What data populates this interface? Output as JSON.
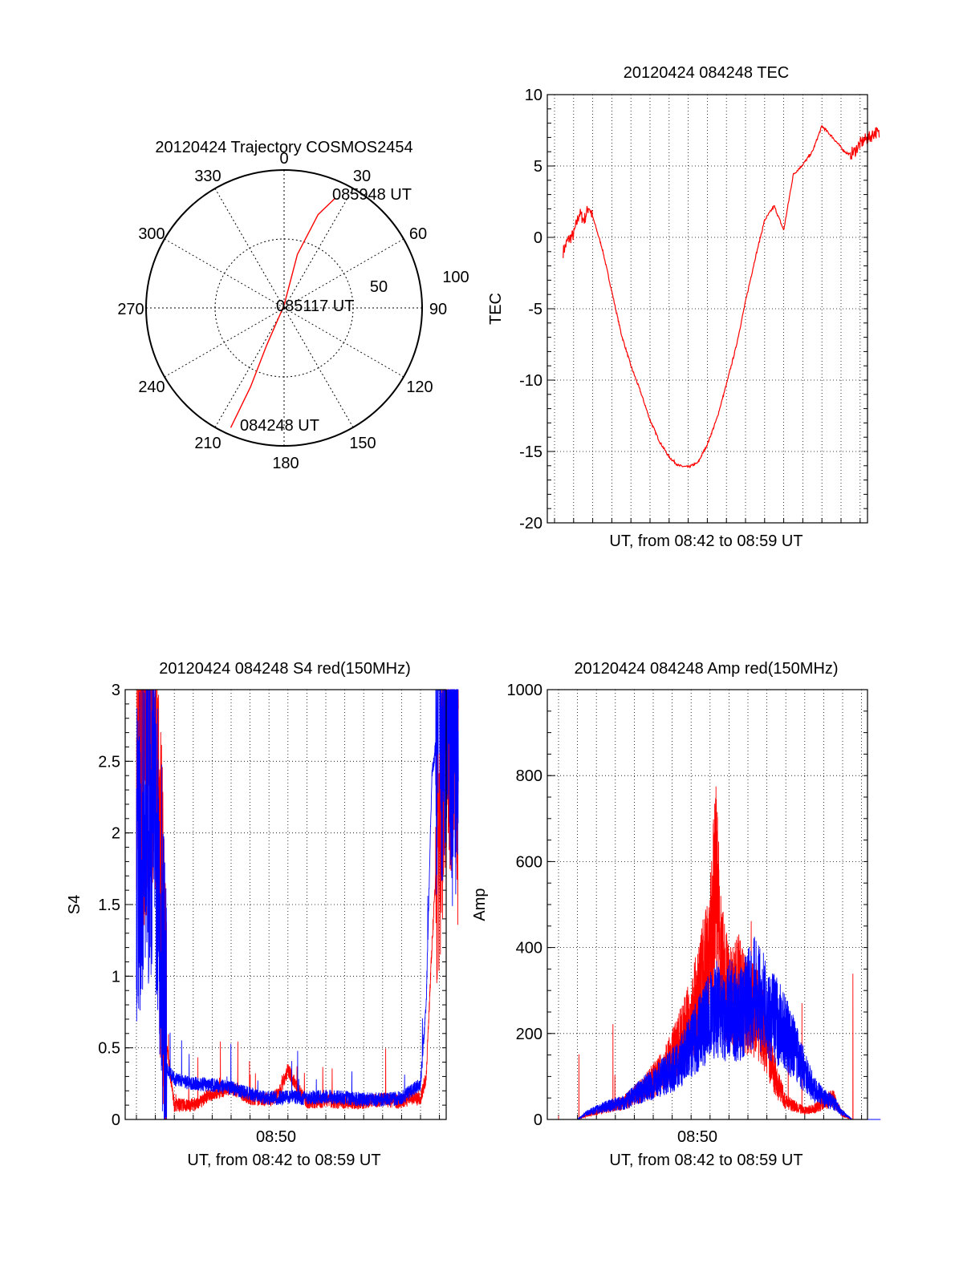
{
  "colors": {
    "red": "#ff0000",
    "blue": "#0000ff",
    "axis": "#000000",
    "grid": "#000000"
  },
  "chart_data": [
    {
      "type": "polar",
      "title": "20120424 Trajectory COSMOS2454",
      "azimuth_labels": [
        "0",
        "30",
        "60",
        "90",
        "120",
        "150",
        "180",
        "210",
        "240",
        "270",
        "300",
        "330"
      ],
      "radial_labels": [
        "50",
        "100"
      ],
      "annotations": [
        "085948 UT",
        "085117 UT",
        "084248 UT"
      ],
      "series": [
        {
          "color": "red",
          "points": [
            [
              25,
              88
            ],
            [
              20,
              72
            ],
            [
              14,
              40
            ],
            [
              0,
              2
            ],
            [
              205,
              30
            ],
            [
              203,
              62
            ],
            [
              204,
              95
            ]
          ]
        }
      ]
    },
    {
      "type": "line",
      "title": "20120424 084248 TEC",
      "ylabel": "TEC",
      "xlabel": "UT, from 08:42 to 08:59 UT",
      "ylim": [
        -20,
        10
      ],
      "yticks": [
        "10",
        "5",
        "0",
        "-5",
        "-10",
        "-15",
        "-20"
      ],
      "xticklabels": [],
      "x_range_min": [
        0,
        17
      ],
      "series": [
        {
          "color": "red",
          "x": [
            0.45,
            0.7,
            1.0,
            1.3,
            1.55,
            1.8,
            2.1,
            2.5,
            3.0,
            3.5,
            4.0,
            4.5,
            5.0,
            5.5,
            6.0,
            6.5,
            7.0,
            7.5,
            8.0,
            8.5,
            9.0,
            9.5,
            10.0,
            10.5,
            11.0,
            11.5,
            12.0,
            12.5,
            13.0,
            13.5,
            14.0,
            14.5,
            15.0,
            15.2,
            15.45,
            15.7,
            15.9,
            16.2,
            16.5,
            16.8,
            17.0
          ],
          "y": [
            -1,
            -0.2,
            0.2,
            1.7,
            1.2,
            2.2,
            1.0,
            -0.8,
            -3.8,
            -6.8,
            -9.0,
            -10.8,
            -12.8,
            -14.3,
            -15.4,
            -16.0,
            -16.1,
            -15.8,
            -14.5,
            -12.7,
            -10.3,
            -7.7,
            -4.5,
            -1.5,
            1.2,
            2.2,
            0.5,
            4.4,
            5.1,
            6.0,
            7.8,
            7.1,
            6.3,
            6.0,
            5.8,
            6.0,
            6.4,
            6.8,
            7.0,
            7.4,
            7.2
          ]
        }
      ]
    },
    {
      "type": "line",
      "title": "20120424 084248 S4 red(150MHz)",
      "ylabel": "S4",
      "xlabel": "UT, from 08:42 to 08:59 UT",
      "ylim": [
        0,
        3
      ],
      "yticks": [
        "3",
        "2.5",
        "2",
        "1.5",
        "1",
        "0.5",
        "0"
      ],
      "xticklabels": [
        "08:50"
      ],
      "series": [
        {
          "color": "red",
          "x": [
            0,
            0.5,
            0.9,
            1.3,
            1.6,
            2.0,
            3.0,
            4.0,
            5.0,
            6.0,
            6.5,
            7.0,
            7.5,
            8.0,
            8.5,
            9.0,
            10.0,
            11.0,
            12.0,
            13.0,
            14.0,
            14.5,
            15.0,
            15.3,
            15.6,
            16.0,
            16.4,
            16.8,
            17.0
          ],
          "y": [
            2.8,
            2.5,
            2.9,
            1.5,
            0.5,
            0.1,
            0.1,
            0.18,
            0.22,
            0.15,
            0.14,
            0.14,
            0.17,
            0.35,
            0.22,
            0.12,
            0.13,
            0.12,
            0.12,
            0.14,
            0.12,
            0.15,
            0.15,
            0.3,
            1.2,
            2.2,
            2.9,
            2.9,
            2.5
          ]
        },
        {
          "color": "blue",
          "x": [
            0,
            0.5,
            0.9,
            1.3,
            1.6,
            2.0,
            3.0,
            4.0,
            5.0,
            6.0,
            6.5,
            7.0,
            7.5,
            8.0,
            8.5,
            9.0,
            10.0,
            11.0,
            12.0,
            13.0,
            14.0,
            14.5,
            15.0,
            15.3,
            15.6,
            16.0,
            16.4,
            16.8,
            17.0
          ],
          "y": [
            1.8,
            2.0,
            2.2,
            1.5,
            0.35,
            0.28,
            0.25,
            0.24,
            0.22,
            0.18,
            0.16,
            0.15,
            0.15,
            0.16,
            0.15,
            0.15,
            0.16,
            0.15,
            0.14,
            0.14,
            0.15,
            0.2,
            0.25,
            0.8,
            2.4,
            2.8,
            2.9,
            2.6,
            2.9
          ]
        }
      ]
    },
    {
      "type": "line",
      "title": "20120424 084248 Amp red(150MHz)",
      "ylabel": "Amp",
      "xlabel": "UT, from 08:42 to 08:59 UT",
      "ylim": [
        0,
        1000
      ],
      "yticks": [
        "1000",
        "800",
        "600",
        "400",
        "200",
        "0"
      ],
      "xticklabels": [
        "08:50"
      ],
      "series": [
        {
          "color": "red",
          "x": [
            0,
            1.0,
            1.5,
            2.5,
            3.5,
            4.5,
            5.5,
            6.2,
            7.0,
            7.5,
            8.0,
            8.3,
            8.6,
            9.0,
            9.5,
            10.0,
            10.5,
            11.0,
            11.5,
            12.0,
            12.5,
            13.0,
            13.5,
            14.0,
            14.5,
            15.0,
            15.5,
            17.0
          ],
          "y": [
            0,
            0,
            10,
            25,
            40,
            70,
            110,
            160,
            230,
            300,
            380,
            550,
            350,
            280,
            300,
            260,
            250,
            180,
            90,
            40,
            30,
            20,
            25,
            40,
            50,
            10,
            0,
            0
          ]
        },
        {
          "color": "blue",
          "x": [
            0,
            1.0,
            1.5,
            2.5,
            3.5,
            4.5,
            5.5,
            6.2,
            7.0,
            7.5,
            8.0,
            8.3,
            8.6,
            9.0,
            9.5,
            10.0,
            10.5,
            11.0,
            11.5,
            12.0,
            12.5,
            13.0,
            13.5,
            14.0,
            14.5,
            15.0,
            15.5,
            17.0
          ],
          "y": [
            0,
            0,
            15,
            30,
            40,
            70,
            100,
            120,
            170,
            210,
            240,
            260,
            230,
            260,
            240,
            280,
            300,
            250,
            230,
            200,
            160,
            110,
            70,
            50,
            40,
            15,
            0,
            0
          ]
        }
      ]
    }
  ]
}
